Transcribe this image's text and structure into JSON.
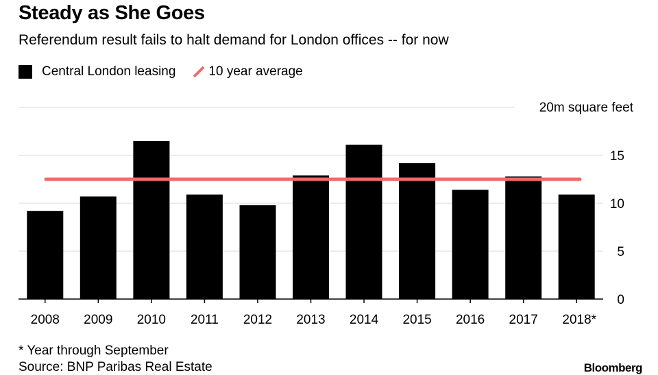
{
  "header": {
    "title": "Steady as She Goes",
    "subtitle": "Referendum result fails to halt demand for London offices -- for now"
  },
  "legend": {
    "series_label": "Central London leasing",
    "average_label": "10 year average"
  },
  "footer": {
    "footnote": "* Year through September",
    "source": "Source: BNP Paribas Real Estate",
    "brand": "Bloomberg"
  },
  "colors": {
    "bar": "#000000",
    "average_line": "#f06a66",
    "grid": "#d9d9d9",
    "axis": "#000000"
  },
  "chart_data": {
    "type": "bar",
    "title": "Steady as She Goes",
    "subtitle": "Referendum result fails to halt demand for London offices -- for now",
    "ylabel": "20m square feet",
    "ylim": [
      0,
      20
    ],
    "yticks": [
      0,
      5,
      10,
      15
    ],
    "y_axis_side": "right",
    "grid": true,
    "categories": [
      "2008",
      "2009",
      "2010",
      "2011",
      "2012",
      "2013",
      "2014",
      "2015",
      "2016",
      "2017",
      "2018*"
    ],
    "series": [
      {
        "name": "Central London leasing",
        "values": [
          9.2,
          10.7,
          16.5,
          10.9,
          9.8,
          12.9,
          16.1,
          14.2,
          11.4,
          12.8,
          10.9
        ]
      }
    ],
    "reference_line": {
      "name": "10 year average",
      "value": 12.5
    },
    "legend_position": "top-left"
  }
}
